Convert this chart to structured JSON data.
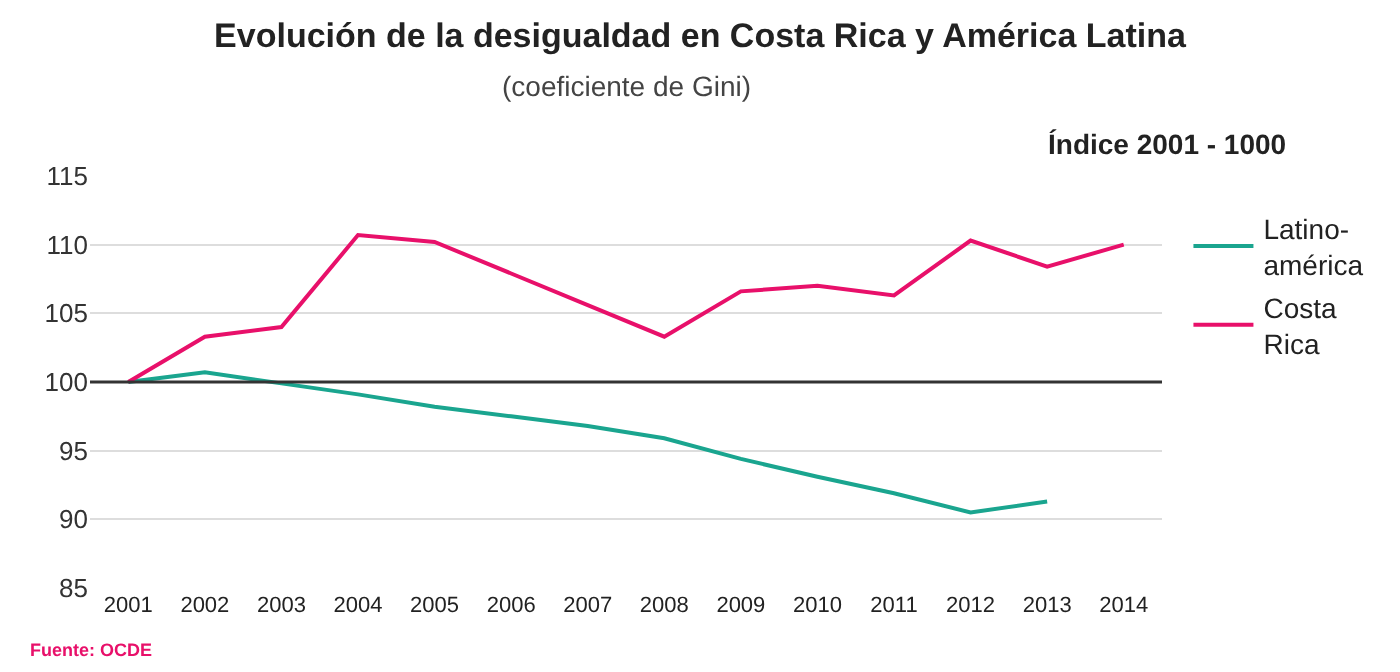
{
  "chart_data": {
    "type": "line",
    "title": "Evolución de la desigualdad en Costa Rica y América Latina",
    "subtitle": "(coeficiente de Gini)",
    "categories": [
      "2001",
      "2002",
      "2003",
      "2004",
      "2005",
      "2006",
      "2007",
      "2008",
      "2009",
      "2010",
      "2011",
      "2012",
      "2013",
      "2014"
    ],
    "series": [
      {
        "name": "Latino-\namérica",
        "color": "#1aa58f",
        "values": [
          100,
          100.7,
          99.9,
          99.1,
          98.2,
          97.5,
          96.8,
          95.9,
          94.4,
          93.1,
          91.9,
          90.5,
          91.3,
          null
        ]
      },
      {
        "name": "Costa\nRica",
        "color": "#e8106a",
        "values": [
          100,
          103.3,
          104,
          110.7,
          110.2,
          107.9,
          105.6,
          103.3,
          106.6,
          107,
          106.3,
          110.3,
          108.4,
          110
        ]
      }
    ],
    "ylim": [
      85,
      115
    ],
    "yticks": [
      85,
      90,
      95,
      100,
      105,
      110,
      115
    ],
    "ref_lines": [
      {
        "axis": "y",
        "value": 100,
        "color": "#333333"
      }
    ],
    "annotations": [
      "Índice 2001 - 1000",
      "Fuente: OCDE"
    ],
    "grid": "y",
    "legend": "right",
    "marker": "none",
    "line_style": "solid"
  }
}
